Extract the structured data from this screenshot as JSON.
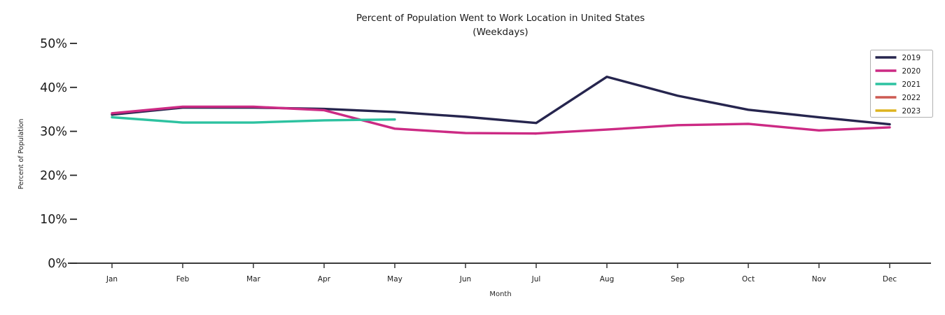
{
  "chart_data": {
    "type": "line",
    "title": "Percent of Population Went to Work Location in United States (Weekdays)",
    "title_lines": [
      "Percent of Population Went to Work Location in United States",
      "(Weekdays)"
    ],
    "xlabel": "Month",
    "ylabel": "Percent of Population",
    "categories": [
      "Jan",
      "Feb",
      "Mar",
      "Apr",
      "May",
      "Jun",
      "Jul",
      "Aug",
      "Sep",
      "Oct",
      "Nov",
      "Dec"
    ],
    "ylim": [
      0,
      50
    ],
    "yticks": [
      0,
      10,
      20,
      30,
      40,
      50
    ],
    "ytick_labels": [
      "0%",
      "10%",
      "20%",
      "30%",
      "40%",
      "50%"
    ],
    "grid": false,
    "legend_position": "upper right",
    "series": [
      {
        "name": "2019",
        "color": "#26254e",
        "values": [
          33.8,
          35.4,
          35.4,
          35.1,
          34.4,
          33.3,
          31.9,
          42.4,
          38.1,
          34.9,
          33.2,
          31.6
        ]
      },
      {
        "name": "2020",
        "color": "#cc2a84",
        "values": [
          34.1,
          35.6,
          35.6,
          34.8,
          30.6,
          29.6,
          29.5,
          30.4,
          31.4,
          31.7,
          30.2,
          30.9
        ]
      },
      {
        "name": "2021",
        "color": "#2dc2a0",
        "values": [
          33.2,
          32.0,
          32.0,
          32.5,
          32.7
        ]
      },
      {
        "name": "2022",
        "color": "#cd5a52",
        "values": []
      },
      {
        "name": "2023",
        "color": "#ddb31f",
        "values": []
      }
    ],
    "axis_color": "#1f1f1f",
    "tick_color": "#262626"
  }
}
